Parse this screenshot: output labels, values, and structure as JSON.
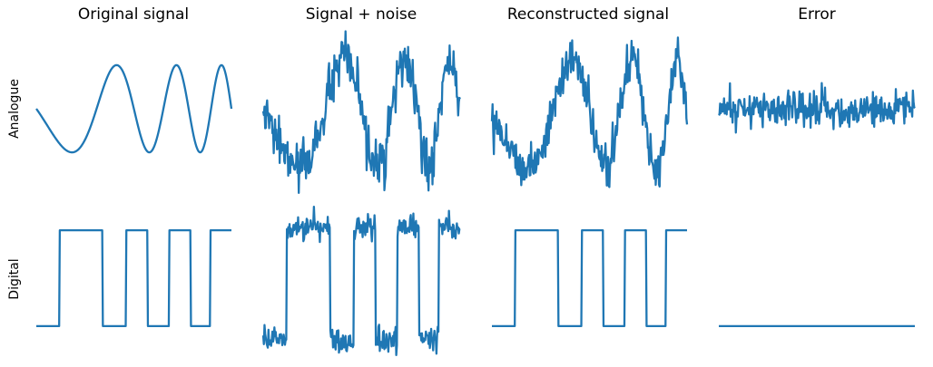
{
  "columns": [
    "Original signal",
    "Signal + noise",
    "Reconstructed signal",
    "Error"
  ],
  "rows": [
    "Analogue",
    "Digital"
  ],
  "colors": {
    "series": "#1f77b4"
  },
  "chart_data": [
    {
      "type": "line",
      "row": "Analogue",
      "column": "Original signal",
      "signal": "chirp",
      "noise_amplitude": 0,
      "ylim": [
        -1.35,
        1.35
      ],
      "grid": false
    },
    {
      "type": "line",
      "row": "Analogue",
      "column": "Signal + noise",
      "signal": "chirp",
      "noise_amplitude": 0.22,
      "ylim": [
        -1.35,
        1.35
      ],
      "grid": false
    },
    {
      "type": "line",
      "row": "Analogue",
      "column": "Reconstructed signal",
      "signal": "chirp",
      "noise_amplitude": 0.2,
      "ylim": [
        -1.35,
        1.35
      ],
      "grid": false
    },
    {
      "type": "line",
      "row": "Analogue",
      "column": "Error",
      "signal": "zero",
      "noise_amplitude": 0.2,
      "ylim": [
        -1.35,
        1.35
      ],
      "grid": false
    },
    {
      "type": "line",
      "row": "Digital",
      "column": "Original signal",
      "signal": "square",
      "noise_amplitude": 0,
      "ylim": [
        -0.2,
        1.2
      ],
      "grid": false
    },
    {
      "type": "line",
      "row": "Digital",
      "column": "Signal + noise",
      "signal": "square",
      "noise_amplitude": 0.06,
      "ylim": [
        -0.2,
        1.2
      ],
      "grid": false
    },
    {
      "type": "line",
      "row": "Digital",
      "column": "Reconstructed signal",
      "signal": "square",
      "noise_amplitude": 0,
      "ylim": [
        -0.2,
        1.2
      ],
      "grid": false
    },
    {
      "type": "line",
      "row": "Digital",
      "column": "Error",
      "signal": "zero",
      "noise_amplitude": 0,
      "ylim": [
        -0.2,
        1.2
      ],
      "grid": false
    }
  ]
}
